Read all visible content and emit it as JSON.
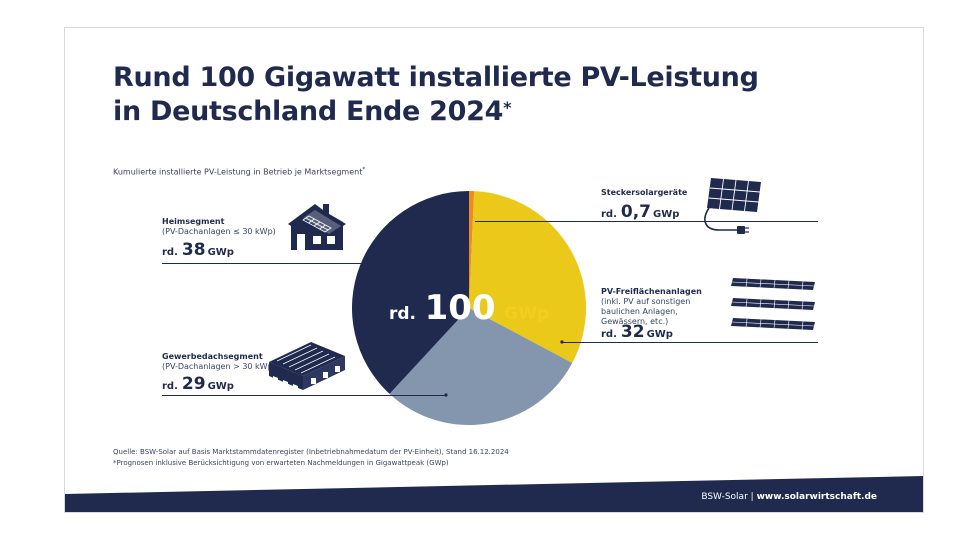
{
  "header": {
    "title_line1": "Rund 100 Gigawatt installierte PV-Leistung",
    "title_line2": "in Deutschland Ende 2024",
    "title_mark": "*",
    "subtitle": "Kumulierte installierte PV-Leistung in Betrieb je Marktsegment",
    "subtitle_mark": "*"
  },
  "chart_data": {
    "type": "pie",
    "title": "Rund 100 Gigawatt installierte PV-Leistung in Deutschland Ende 2024",
    "subtitle": "Kumulierte installierte PV-Leistung in Betrieb je Marktsegment",
    "total": {
      "prefix": "rd.",
      "value": 100,
      "unit": "GWp"
    },
    "slices": [
      {
        "name": "Steckersolargeräte",
        "description": "",
        "prefix": "rd.",
        "value": 0.7,
        "label": "0,7",
        "unit": "GWp",
        "color": "#f08a1c"
      },
      {
        "name": "PV-Freiflächenanlagen",
        "description": "(inkl. PV auf sonstigen baulichen Anlagen, Gewässern, etc.)",
        "prefix": "rd.",
        "value": 32,
        "label": "32",
        "unit": "GWp",
        "color": "#eac91b"
      },
      {
        "name": "Gewerbedachsegment",
        "description": "(PV-Dachanlagen > 30 kWp)",
        "prefix": "rd.",
        "value": 29,
        "label": "29",
        "unit": "GWp",
        "color": "#8496ae"
      },
      {
        "name": "Heimsegment",
        "description": "(PV-Dachanlagen ≤ 30 kWp)",
        "prefix": "rd.",
        "value": 38,
        "label": "38",
        "unit": "GWp",
        "color": "#1f2a4e"
      }
    ]
  },
  "footnotes": {
    "source": "Quelle: BSW-Solar auf Basis Marktstammdatenregister (Inbetriebnahmedatum der PV-Einheit), Stand 16.12.2024",
    "prognosis": "*Prognosen inklusive Berücksichtigung von erwarteten Nachmeldungen in Gigawattpeak (GWp)"
  },
  "footer": {
    "org": "BSW-Solar",
    "separator": "|",
    "url": "www.solarwirtschaft.de"
  },
  "colors": {
    "navy": "#1f2a4e",
    "yellow": "#eac91b",
    "grey_blue": "#8496ae",
    "orange": "#f08a1c"
  }
}
